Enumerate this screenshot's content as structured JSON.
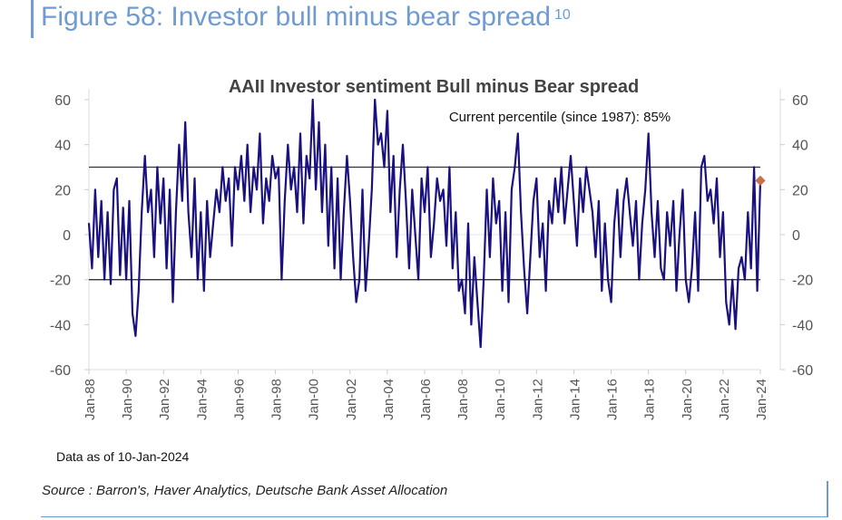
{
  "figure": {
    "title": "Figure 58: Investor bull minus bear spread",
    "footnote": "10"
  },
  "note": "Data as of 10-Jan-2024",
  "source": "Source : Barron's, Haver Analytics, Deutsche Bank Asset Allocation",
  "colors": {
    "line": "#1a1180",
    "marker": "#c8704a",
    "title": "#6f9bd1",
    "ref": "#333333"
  },
  "chart_data": {
    "type": "line",
    "title": "AAII Investor sentiment Bull minus Bear spread",
    "annotation": "Current percentile (since 1987): 85%",
    "xlabel": "",
    "ylabel": "",
    "ylim": [
      -60,
      60
    ],
    "yticks": [
      60,
      40,
      20,
      0,
      -20,
      -40,
      -60
    ],
    "xstart": 1988,
    "xend": 2024,
    "xticks": [
      "Jan-88",
      "Jan-90",
      "Jan-92",
      "Jan-94",
      "Jan-96",
      "Jan-98",
      "Jan-00",
      "Jan-02",
      "Jan-04",
      "Jan-06",
      "Jan-08",
      "Jan-10",
      "Jan-12",
      "Jan-14",
      "Jan-16",
      "Jan-18",
      "Jan-20",
      "Jan-22",
      "Jan-24"
    ],
    "reference_lines": [
      30,
      -20
    ],
    "current_value": 24,
    "series": [
      {
        "name": "Bull minus Bear spread",
        "step_years": 0.1667,
        "values": [
          5,
          -15,
          20,
          -10,
          15,
          -20,
          10,
          -22,
          20,
          25,
          -18,
          12,
          -20,
          15,
          -35,
          -45,
          -25,
          10,
          35,
          10,
          20,
          -10,
          30,
          5,
          25,
          -15,
          20,
          -30,
          10,
          40,
          15,
          50,
          10,
          -10,
          25,
          -20,
          10,
          -25,
          15,
          -10,
          5,
          20,
          10,
          30,
          15,
          25,
          -5,
          30,
          20,
          35,
          15,
          40,
          10,
          30,
          20,
          45,
          5,
          25,
          15,
          35,
          25,
          30,
          -20,
          15,
          40,
          20,
          30,
          10,
          45,
          5,
          35,
          25,
          60,
          20,
          50,
          10,
          40,
          -5,
          30,
          -15,
          25,
          -20,
          10,
          35,
          15,
          -10,
          -30,
          -20,
          20,
          -25,
          -5,
          20,
          60,
          40,
          45,
          30,
          55,
          10,
          35,
          -10,
          20,
          40,
          15,
          -15,
          20,
          0,
          -20,
          25,
          10,
          30,
          -10,
          5,
          25,
          15,
          20,
          -5,
          30,
          -15,
          10,
          -25,
          -20,
          -35,
          5,
          -40,
          -10,
          -30,
          -50,
          -20,
          20,
          -10,
          25,
          5,
          15,
          -25,
          10,
          -30,
          20,
          30,
          45,
          10,
          -15,
          -35,
          -10,
          15,
          25,
          -10,
          5,
          -25,
          15,
          5,
          25,
          10,
          30,
          5,
          20,
          35,
          15,
          -5,
          25,
          10,
          30,
          20,
          10,
          -10,
          15,
          -25,
          5,
          -20,
          -30,
          5,
          20,
          -10,
          15,
          25,
          10,
          -5,
          15,
          -20,
          5,
          20,
          45,
          10,
          -10,
          15,
          -15,
          -20,
          10,
          -5,
          15,
          -25,
          0,
          20,
          -20,
          -30,
          -15,
          10,
          -25,
          30,
          35,
          15,
          20,
          5,
          25,
          -10,
          10,
          -30,
          -40,
          -20,
          -42,
          -15,
          -10,
          -20,
          10,
          -15,
          30,
          -25,
          24
        ]
      }
    ]
  }
}
